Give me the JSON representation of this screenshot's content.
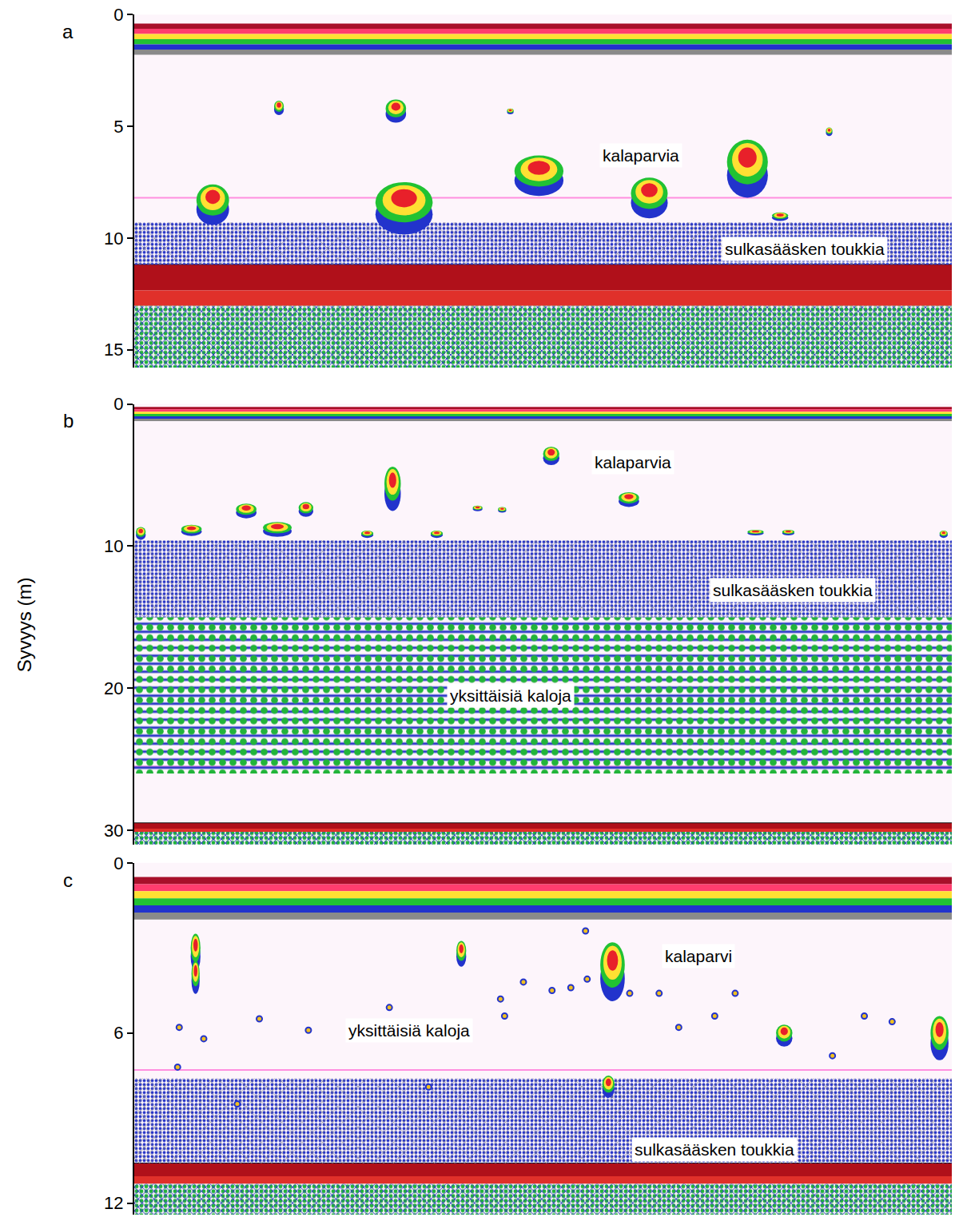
{
  "chart_data": [
    {
      "panel": "a",
      "type": "echogram",
      "xlim": [
        0,
        100
      ],
      "ylim": [
        0,
        15.8
      ],
      "yticks": [
        0,
        5,
        10,
        15
      ],
      "tick_labels": "y",
      "surface": [
        0.4,
        1.8
      ],
      "bottom": 11.2,
      "pink_line": 8.2,
      "larvae_layer": [
        9.3,
        11.2
      ],
      "fish_layer": null,
      "schools": {
        "x": [
          17.7,
          32,
          46,
          9.6,
          33,
          49.5,
          63,
          75,
          85,
          79
        ],
        "depth": [
          4.1,
          4.2,
          4.3,
          8.3,
          8.4,
          7.0,
          8.0,
          6.6,
          5.2,
          9.0
        ],
        "width": [
          1.2,
          2.5,
          0.8,
          4,
          7,
          6,
          4.5,
          5,
          0.8,
          2
        ],
        "height": [
          0.5,
          0.8,
          0.2,
          1.4,
          1.8,
          1.4,
          1.4,
          2.0,
          0.3,
          0.3
        ]
      },
      "fish": {
        "x": [],
        "depth": []
      },
      "annotations": [
        {
          "text": "kalaparvia",
          "x": 62,
          "y": 6.3
        },
        {
          "text": "sulkasääsken toukkia",
          "x": 82,
          "y": 10.5
        }
      ]
    },
    {
      "panel": "b",
      "type": "echogram",
      "ylabel": "Syvyys (m)",
      "xlim": [
        0,
        100
      ],
      "ylim": [
        0,
        31
      ],
      "yticks": [
        0,
        10,
        20,
        30
      ],
      "tick_labels": "y",
      "surface": [
        0.2,
        1.2
      ],
      "bottom": 29.5,
      "pink_line": 25.5,
      "larvae_layer": [
        9.6,
        15.0
      ],
      "fish_layer": [
        15.0,
        26.0
      ],
      "schools": {
        "x": [
          51,
          31.6,
          60.5,
          13.7,
          21,
          7,
          17.5,
          0.8,
          42,
          45,
          28.5,
          37,
          76,
          80,
          99
        ],
        "depth": [
          3.5,
          5.6,
          6.6,
          7.4,
          7.3,
          8.8,
          8.7,
          9.0,
          7.3,
          7.4,
          9.1,
          9.1,
          9.0,
          9.0,
          9.1
        ],
        "width": [
          2,
          2,
          2.5,
          2.5,
          1.8,
          2.5,
          3.5,
          1.2,
          1.2,
          1,
          1.5,
          1.5,
          2,
          1.5,
          1
        ],
        "height": [
          1.0,
          2.4,
          0.8,
          0.8,
          0.8,
          0.6,
          0.8,
          0.7,
          0.3,
          0.3,
          0.4,
          0.4,
          0.3,
          0.3,
          0.4
        ]
      },
      "fish": {
        "x": [],
        "depth": []
      },
      "annotations": [
        {
          "text": "kalaparvia",
          "x": 61,
          "y": 4.1
        },
        {
          "text": "sulkasääsken toukkia",
          "x": 80.5,
          "y": 13.1
        },
        {
          "text": "yksittäisiä kaloja",
          "x": 46,
          "y": 20.5
        }
      ]
    },
    {
      "panel": "c",
      "type": "echogram",
      "xlim": [
        0,
        100
      ],
      "ylim": [
        0,
        12.4
      ],
      "yticks": [
        0,
        6,
        12
      ],
      "tick_labels": "y",
      "surface": [
        0.5,
        2.0
      ],
      "bottom": 10.6,
      "pink_line": 7.3,
      "larvae_layer": [
        7.6,
        10.6
      ],
      "fish_layer": null,
      "schools": {
        "x": [
          58.5,
          7.5,
          7.5,
          40,
          98.5,
          58,
          79.5
        ],
        "depth": [
          3.6,
          3.0,
          3.9,
          3.1,
          6.0,
          7.8,
          6.0
        ],
        "width": [
          3,
          1.2,
          1,
          1.2,
          2.2,
          1.5,
          2
        ],
        "height": [
          1.6,
          1.0,
          0.9,
          0.7,
          1.2,
          0.6,
          0.6
        ]
      },
      "fish": {
        "x": [
          5.5,
          8.5,
          15.3,
          21.3,
          31.2,
          44.8,
          45.3,
          47.6,
          51.1,
          53.4,
          55.4,
          60.6,
          64.2,
          66.6,
          71,
          89.3,
          92.7,
          5.3,
          36,
          12.6,
          85.4,
          73.5,
          55.2
        ],
        "depth": [
          5.8,
          6.2,
          5.5,
          5.9,
          5.1,
          4.8,
          5.4,
          4.2,
          4.5,
          4.4,
          4.1,
          4.6,
          4.6,
          5.8,
          5.4,
          5.4,
          5.6,
          7.2,
          7.9,
          8.5,
          6.8,
          4.6,
          2.4
        ]
      },
      "annotations": [
        {
          "text": "kalaparvi",
          "x": 69,
          "y": 3.3
        },
        {
          "text": "yksittäisiä kaloja",
          "x": 33.6,
          "y": 5.9
        },
        {
          "text": "sulkasääsken toukkia",
          "x": 71,
          "y": 10.1
        }
      ]
    }
  ]
}
